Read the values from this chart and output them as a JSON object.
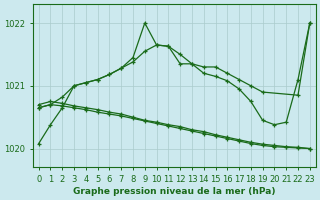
{
  "xlabel": "Graphe pression niveau de la mer (hPa)",
  "ylim": [
    1019.7,
    1022.3
  ],
  "xlim": [
    -0.5,
    23.5
  ],
  "xticks": [
    0,
    1,
    2,
    3,
    4,
    5,
    6,
    7,
    8,
    9,
    10,
    11,
    12,
    13,
    14,
    15,
    16,
    17,
    18,
    19,
    20,
    21,
    22,
    23
  ],
  "yticks": [
    1020,
    1021,
    1022
  ],
  "bg_color": "#cce9ee",
  "grid_color": "#aacccc",
  "line_color": "#1a6b1a",
  "line1_x": [
    0,
    1,
    2,
    3,
    4,
    5,
    6,
    7,
    8,
    9,
    10,
    11,
    12,
    13,
    14,
    15,
    16,
    17,
    18,
    19,
    20,
    21,
    22,
    23
  ],
  "line1_y": [
    1020.7,
    1020.75,
    1020.72,
    1020.68,
    1020.65,
    1020.62,
    1020.58,
    1020.55,
    1020.5,
    1020.45,
    1020.42,
    1020.38,
    1020.35,
    1020.3,
    1020.27,
    1020.22,
    1020.18,
    1020.14,
    1020.1,
    1020.07,
    1020.05,
    1020.03,
    1020.02,
    1020.0
  ],
  "line2_x": [
    0,
    1,
    2,
    3,
    4,
    5,
    6,
    7,
    8,
    9,
    10,
    11,
    12,
    13,
    14,
    15,
    16,
    17,
    18,
    19,
    20,
    21,
    22,
    23
  ],
  "line2_y": [
    1020.65,
    1020.7,
    1020.68,
    1020.65,
    1020.62,
    1020.58,
    1020.55,
    1020.52,
    1020.48,
    1020.44,
    1020.4,
    1020.36,
    1020.32,
    1020.28,
    1020.24,
    1020.2,
    1020.16,
    1020.12,
    1020.08,
    1020.05,
    1020.03,
    1020.02,
    1020.01,
    1020.0
  ],
  "line3_x": [
    0,
    1,
    2,
    3,
    4,
    5,
    6,
    7,
    8,
    9,
    10,
    11,
    12,
    13,
    14,
    15,
    16,
    17,
    18,
    19,
    20,
    21,
    22,
    23
  ],
  "line3_y": [
    1020.65,
    1020.7,
    1020.82,
    1021.0,
    1021.05,
    1021.1,
    1021.18,
    1021.28,
    1021.38,
    1021.55,
    1021.65,
    1021.63,
    1021.5,
    1021.35,
    1021.2,
    1021.15,
    1021.08,
    1020.95,
    1020.75,
    1020.45,
    1020.38,
    1020.42,
    1021.1,
    1022.0
  ],
  "line4_x": [
    0,
    1,
    2,
    3,
    4,
    5,
    6,
    7,
    8,
    9,
    10,
    11,
    12,
    13,
    14,
    15,
    16,
    17,
    18,
    19,
    22,
    23
  ],
  "line4_y": [
    1020.08,
    1020.38,
    1020.65,
    1021.0,
    1021.05,
    1021.1,
    1021.18,
    1021.28,
    1021.45,
    1022.0,
    1021.65,
    1021.63,
    1021.35,
    1021.35,
    1021.3,
    1021.3,
    1021.2,
    1021.1,
    1021.0,
    1020.9,
    1020.85,
    1022.0
  ]
}
